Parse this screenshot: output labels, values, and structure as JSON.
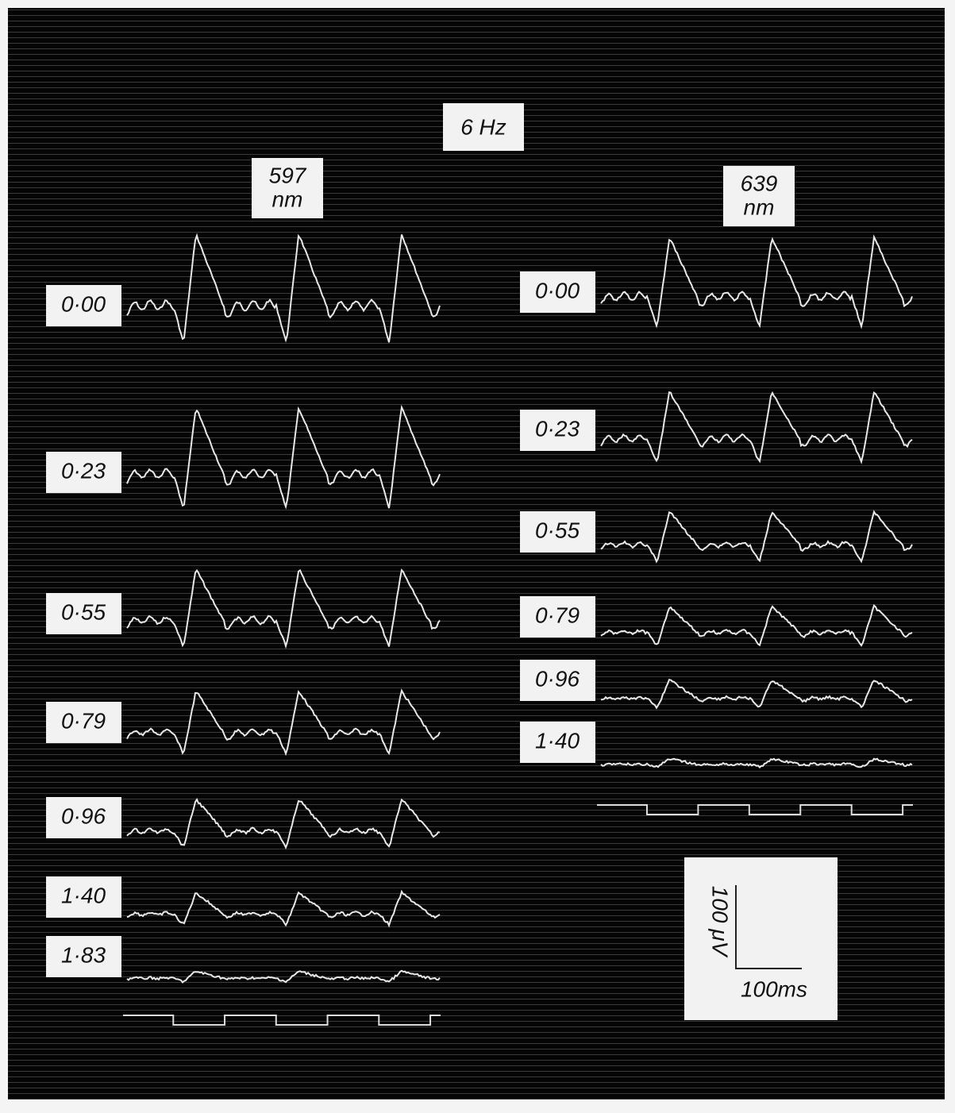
{
  "figure": {
    "title": "6 Hz",
    "columns": [
      {
        "wavelength": "597",
        "unit": "nm",
        "rows": [
          "0·00",
          "0·23",
          "0·55",
          "0·79",
          "0·96",
          "1·40",
          "1·83"
        ]
      },
      {
        "wavelength": "639",
        "unit": "nm",
        "rows": [
          "0·00",
          "0·23",
          "0·55",
          "0·79",
          "0·96",
          "1·40"
        ]
      }
    ],
    "scale_bar": {
      "vertical": "100 μV",
      "horizontal": "100ms"
    }
  }
}
